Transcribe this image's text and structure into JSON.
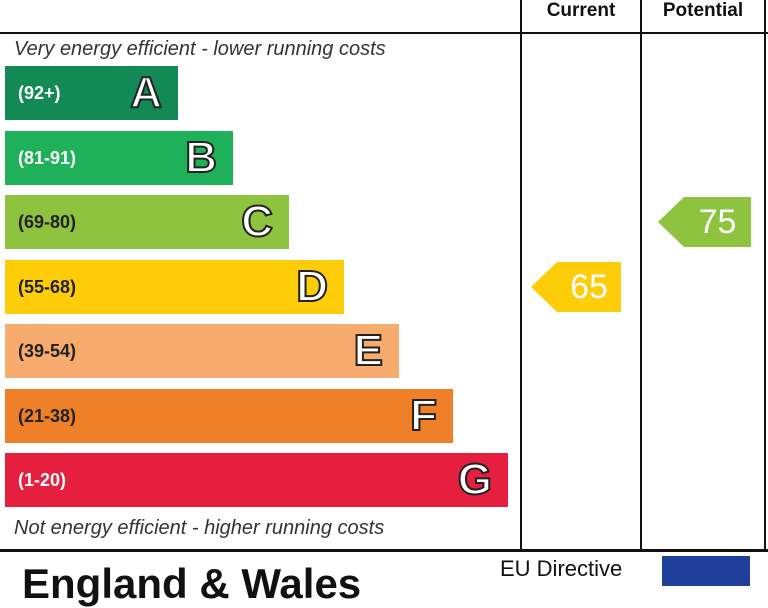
{
  "header": {
    "current": "Current",
    "potential": "Potential"
  },
  "top_note": "Very energy efficient - lower running costs",
  "bottom_note": "Not energy efficient - higher running costs",
  "chart_data": {
    "type": "bar",
    "bands": [
      {
        "letter": "A",
        "range": "(92+)",
        "color": "#138a55",
        "text_color": "#ffffff"
      },
      {
        "letter": "B",
        "range": "(81-91)",
        "color": "#1eb159",
        "text_color": "#ffffff"
      },
      {
        "letter": "C",
        "range": "(69-80)",
        "color": "#8dc33f",
        "text_color": "#222222"
      },
      {
        "letter": "D",
        "range": "(55-68)",
        "color": "#fdcd0a",
        "text_color": "#222222"
      },
      {
        "letter": "E",
        "range": "(39-54)",
        "color": "#f7ac6e",
        "text_color": "#222222"
      },
      {
        "letter": "F",
        "range": "(21-38)",
        "color": "#ef8027",
        "text_color": "#222222"
      },
      {
        "letter": "G",
        "range": "(1-20)",
        "color": "#e51f3d",
        "text_color": "#ffffff"
      }
    ],
    "current": {
      "value": 65,
      "band": "D",
      "color": "#fdcd0a"
    },
    "potential": {
      "value": 75,
      "band": "C",
      "color": "#8dc33f"
    }
  },
  "footer": {
    "country": "England & Wales",
    "eu_directive": "EU Directive"
  }
}
